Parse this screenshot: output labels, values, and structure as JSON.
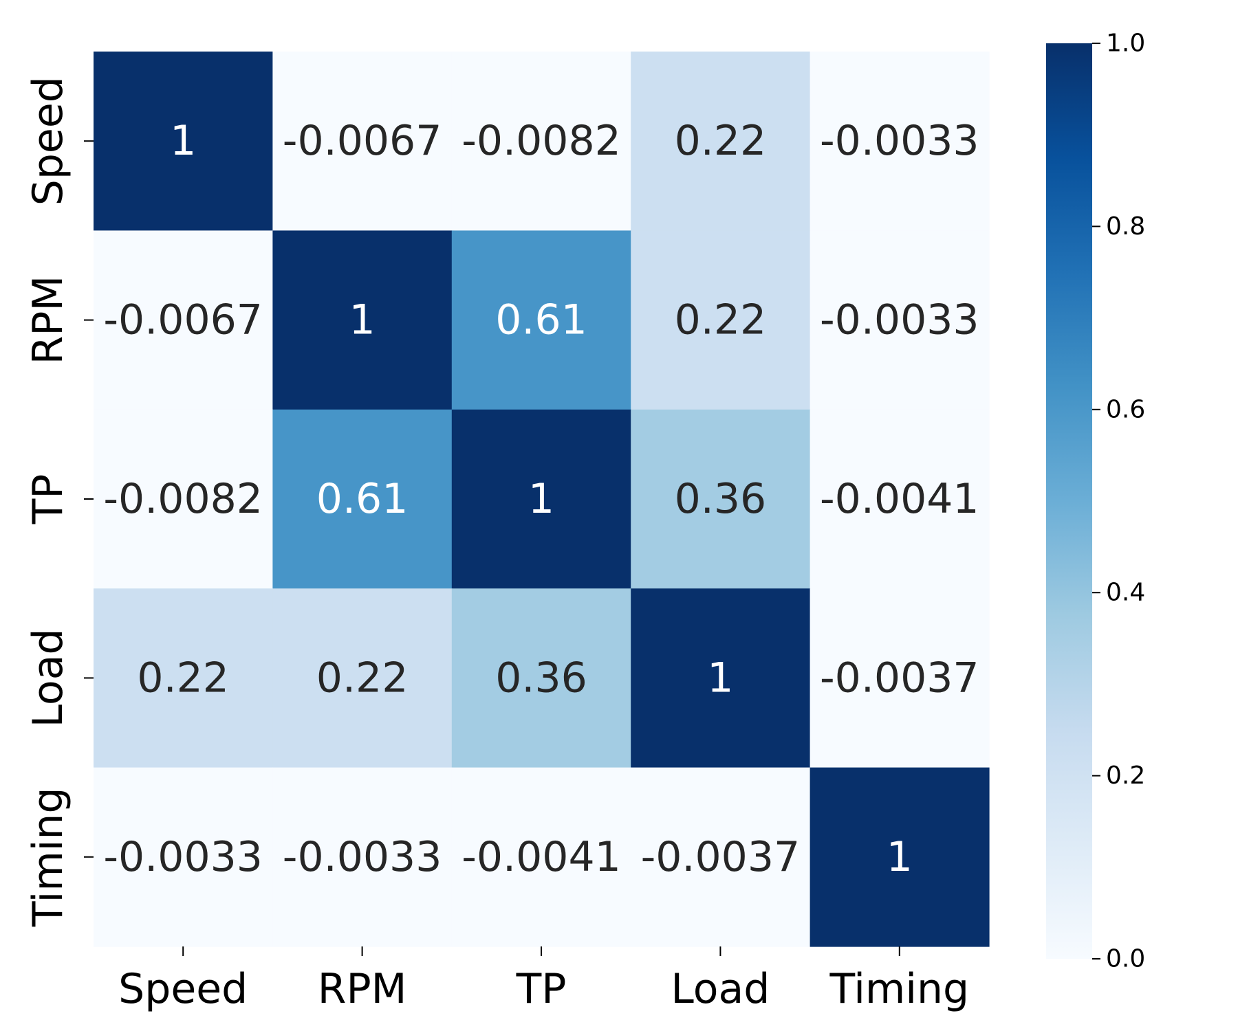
{
  "chart_data": {
    "type": "heatmap",
    "title": "",
    "xlabel": "",
    "ylabel": "",
    "x_categories": [
      "Speed",
      "RPM",
      "TP",
      "Load",
      "Timing"
    ],
    "y_categories": [
      "Speed",
      "RPM",
      "TP",
      "Load",
      "Timing"
    ],
    "values": [
      [
        1,
        -0.0067,
        -0.0082,
        0.22,
        -0.0033
      ],
      [
        -0.0067,
        1,
        0.61,
        0.22,
        -0.0033
      ],
      [
        -0.0082,
        0.61,
        1,
        0.36,
        -0.0041
      ],
      [
        0.22,
        0.22,
        0.36,
        1,
        -0.0037
      ],
      [
        -0.0033,
        -0.0033,
        -0.0041,
        -0.0037,
        1
      ]
    ],
    "cell_labels": [
      [
        "1",
        "-0.0067",
        "-0.0082",
        "0.22",
        "-0.0033"
      ],
      [
        "-0.0067",
        "1",
        "0.61",
        "0.22",
        "-0.0033"
      ],
      [
        "-0.0082",
        "0.61",
        "1",
        "0.36",
        "-0.0041"
      ],
      [
        "0.22",
        "0.22",
        "0.36",
        "1",
        "-0.0037"
      ],
      [
        "-0.0033",
        "-0.0033",
        "-0.0041",
        "-0.0037",
        "1"
      ]
    ],
    "colormap": "Blues",
    "colorbar": {
      "range": [
        0.0,
        1.0
      ],
      "ticks": [
        0.0,
        0.2,
        0.4,
        0.6,
        0.8,
        1.0
      ],
      "tick_labels": [
        "0.0",
        "0.2",
        "0.4",
        "0.6",
        "0.8",
        "1.0"
      ],
      "position": "right"
    },
    "grid": false,
    "legend": "none"
  }
}
